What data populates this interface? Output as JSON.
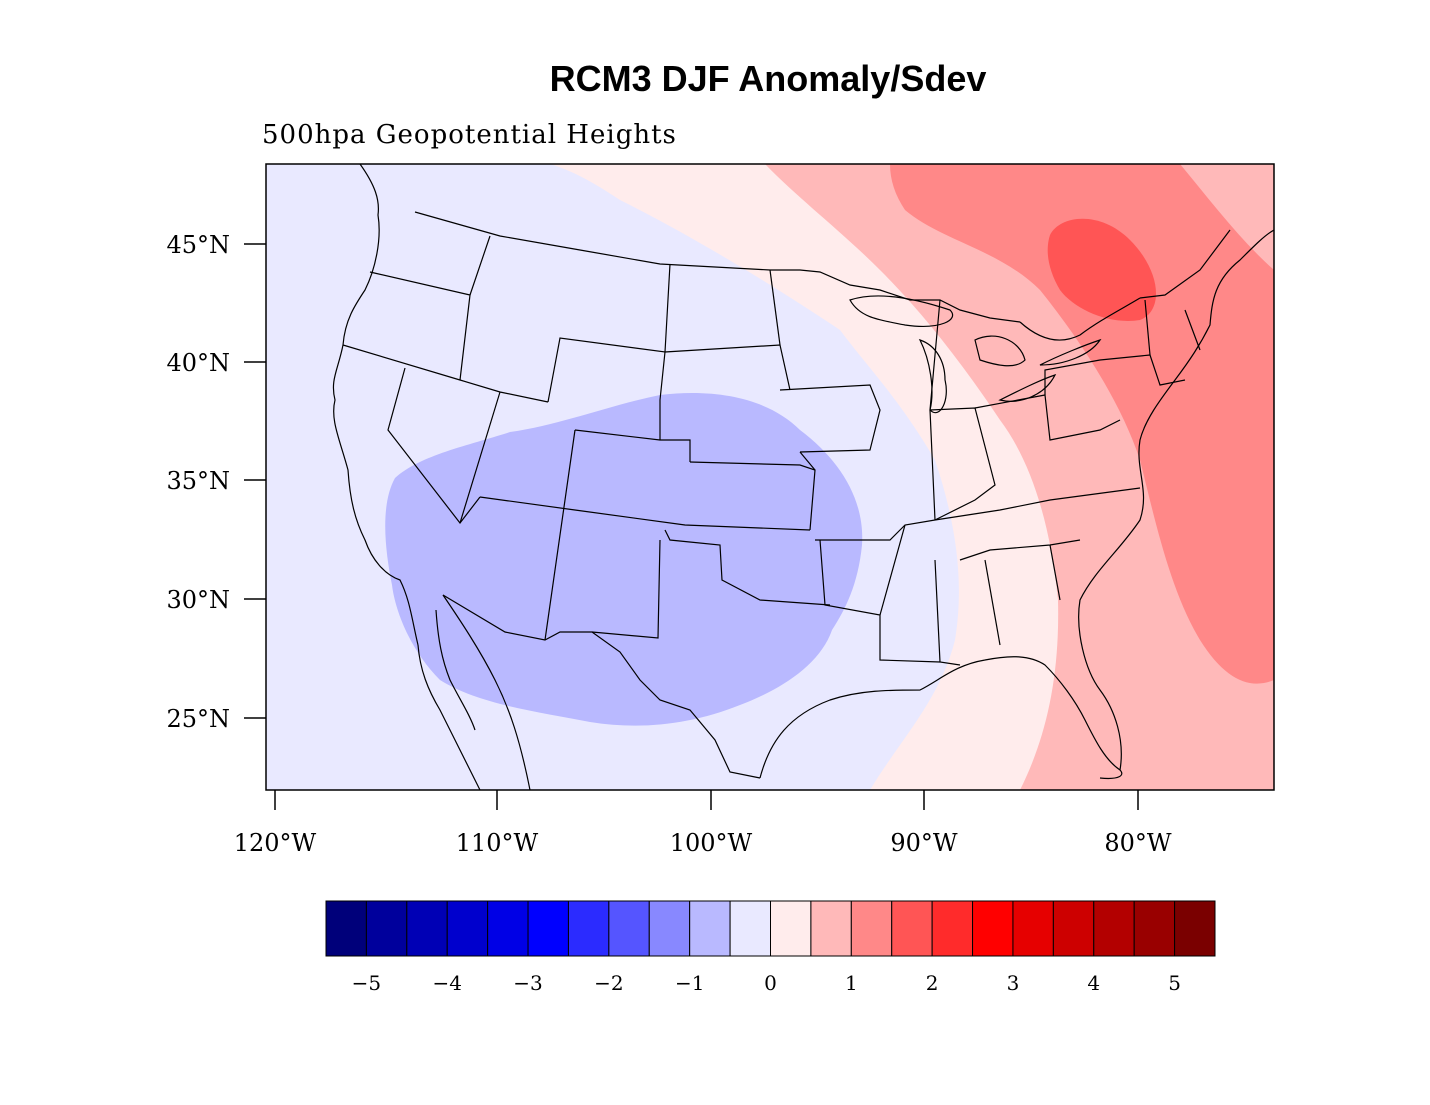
{
  "title": "RCM3 DJF Anomaly/Sdev",
  "subtitle": "500hpa Geopotential Heights",
  "map": {
    "lat_ticks": [
      "45°N",
      "40°N",
      "35°N",
      "30°N",
      "25°N"
    ],
    "lon_ticks": [
      "120°W",
      "110°W",
      "100°W",
      "90°W",
      "80°W"
    ]
  },
  "colorbar": {
    "labels": [
      "−5",
      "−4",
      "−3",
      "−2",
      "−1",
      "0",
      "1",
      "2",
      "3",
      "4",
      "5"
    ],
    "colors": [
      "#00007a",
      "#00009c",
      "#0000b5",
      "#0000cd",
      "#0000e6",
      "#0000ff",
      "#2b2bff",
      "#5555ff",
      "#8888ff",
      "#b9b9ff",
      "#e9e9ff",
      "#ffecec",
      "#ffb9b9",
      "#ff8888",
      "#ff5555",
      "#ff2b2b",
      "#ff0000",
      "#e60000",
      "#cd0000",
      "#b30000",
      "#990000",
      "#7a0000"
    ]
  }
}
